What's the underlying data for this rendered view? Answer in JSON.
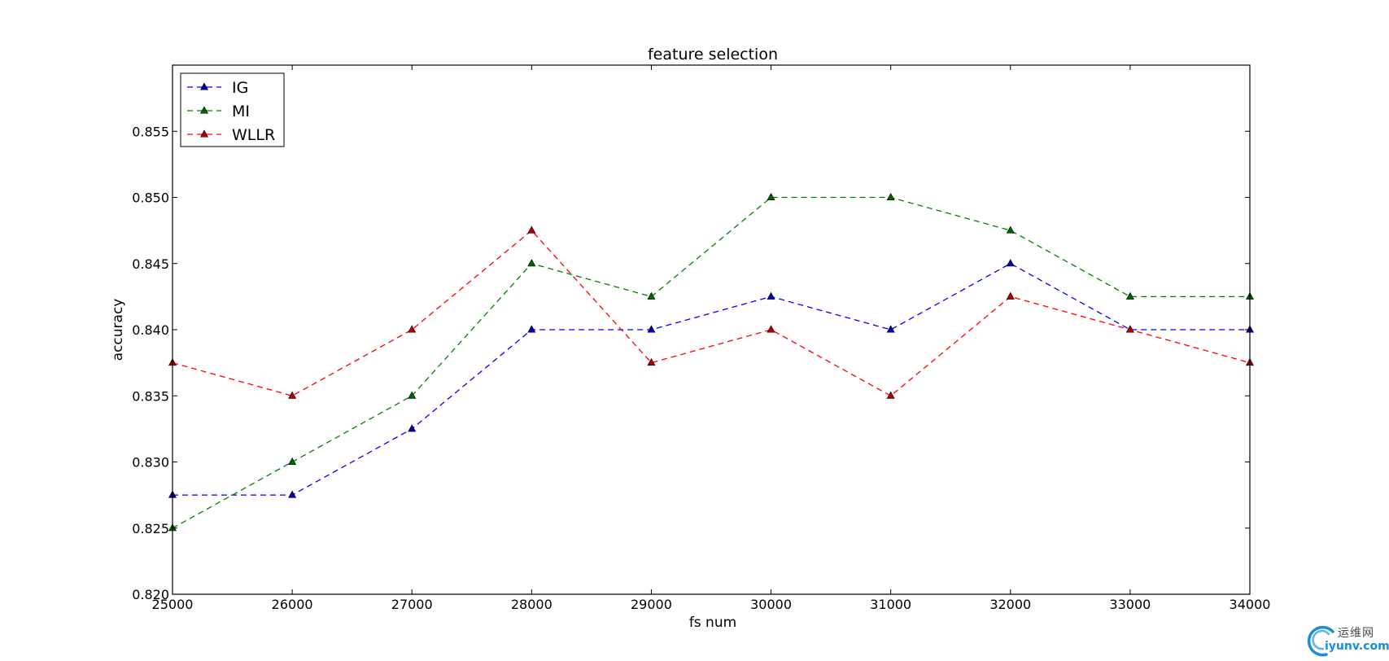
{
  "chart_data": {
    "type": "line",
    "title": "feature  selection",
    "xlabel": "fs num",
    "ylabel": "accuracy",
    "xlim": [
      25000,
      34000
    ],
    "ylim": [
      0.82,
      0.86
    ],
    "xticks": [
      "25000",
      "26000",
      "27000",
      "28000",
      "29000",
      "30000",
      "31000",
      "32000",
      "33000",
      "34000"
    ],
    "yticks": [
      "0.820",
      "0.825",
      "0.830",
      "0.835",
      "0.840",
      "0.845",
      "0.850",
      "0.855"
    ],
    "x": [
      25000,
      26000,
      27000,
      28000,
      29000,
      30000,
      31000,
      32000,
      33000,
      34000
    ],
    "series": [
      {
        "name": "IG",
        "color": "#0000ff",
        "marker_color": "#0000aa",
        "values": [
          0.8275,
          0.8275,
          0.8325,
          0.84,
          0.84,
          0.8425,
          0.84,
          0.845,
          0.84,
          0.84
        ]
      },
      {
        "name": "MI",
        "color": "#008000",
        "marker_color": "#006400",
        "values": [
          0.825,
          0.83,
          0.835,
          0.845,
          0.8425,
          0.85,
          0.85,
          0.8475,
          0.8425,
          0.8425
        ]
      },
      {
        "name": "WLLR",
        "color": "#ff0000",
        "marker_color": "#aa0000",
        "values": [
          0.8375,
          0.835,
          0.84,
          0.8475,
          0.8375,
          0.84,
          0.835,
          0.8425,
          0.84,
          0.8375
        ]
      }
    ],
    "line_style": "dashed",
    "marker": "triangle",
    "grid": false,
    "legend_position": "top-left"
  },
  "watermark": {
    "cn_text": "运维网",
    "url_text": "iyunv.com"
  }
}
